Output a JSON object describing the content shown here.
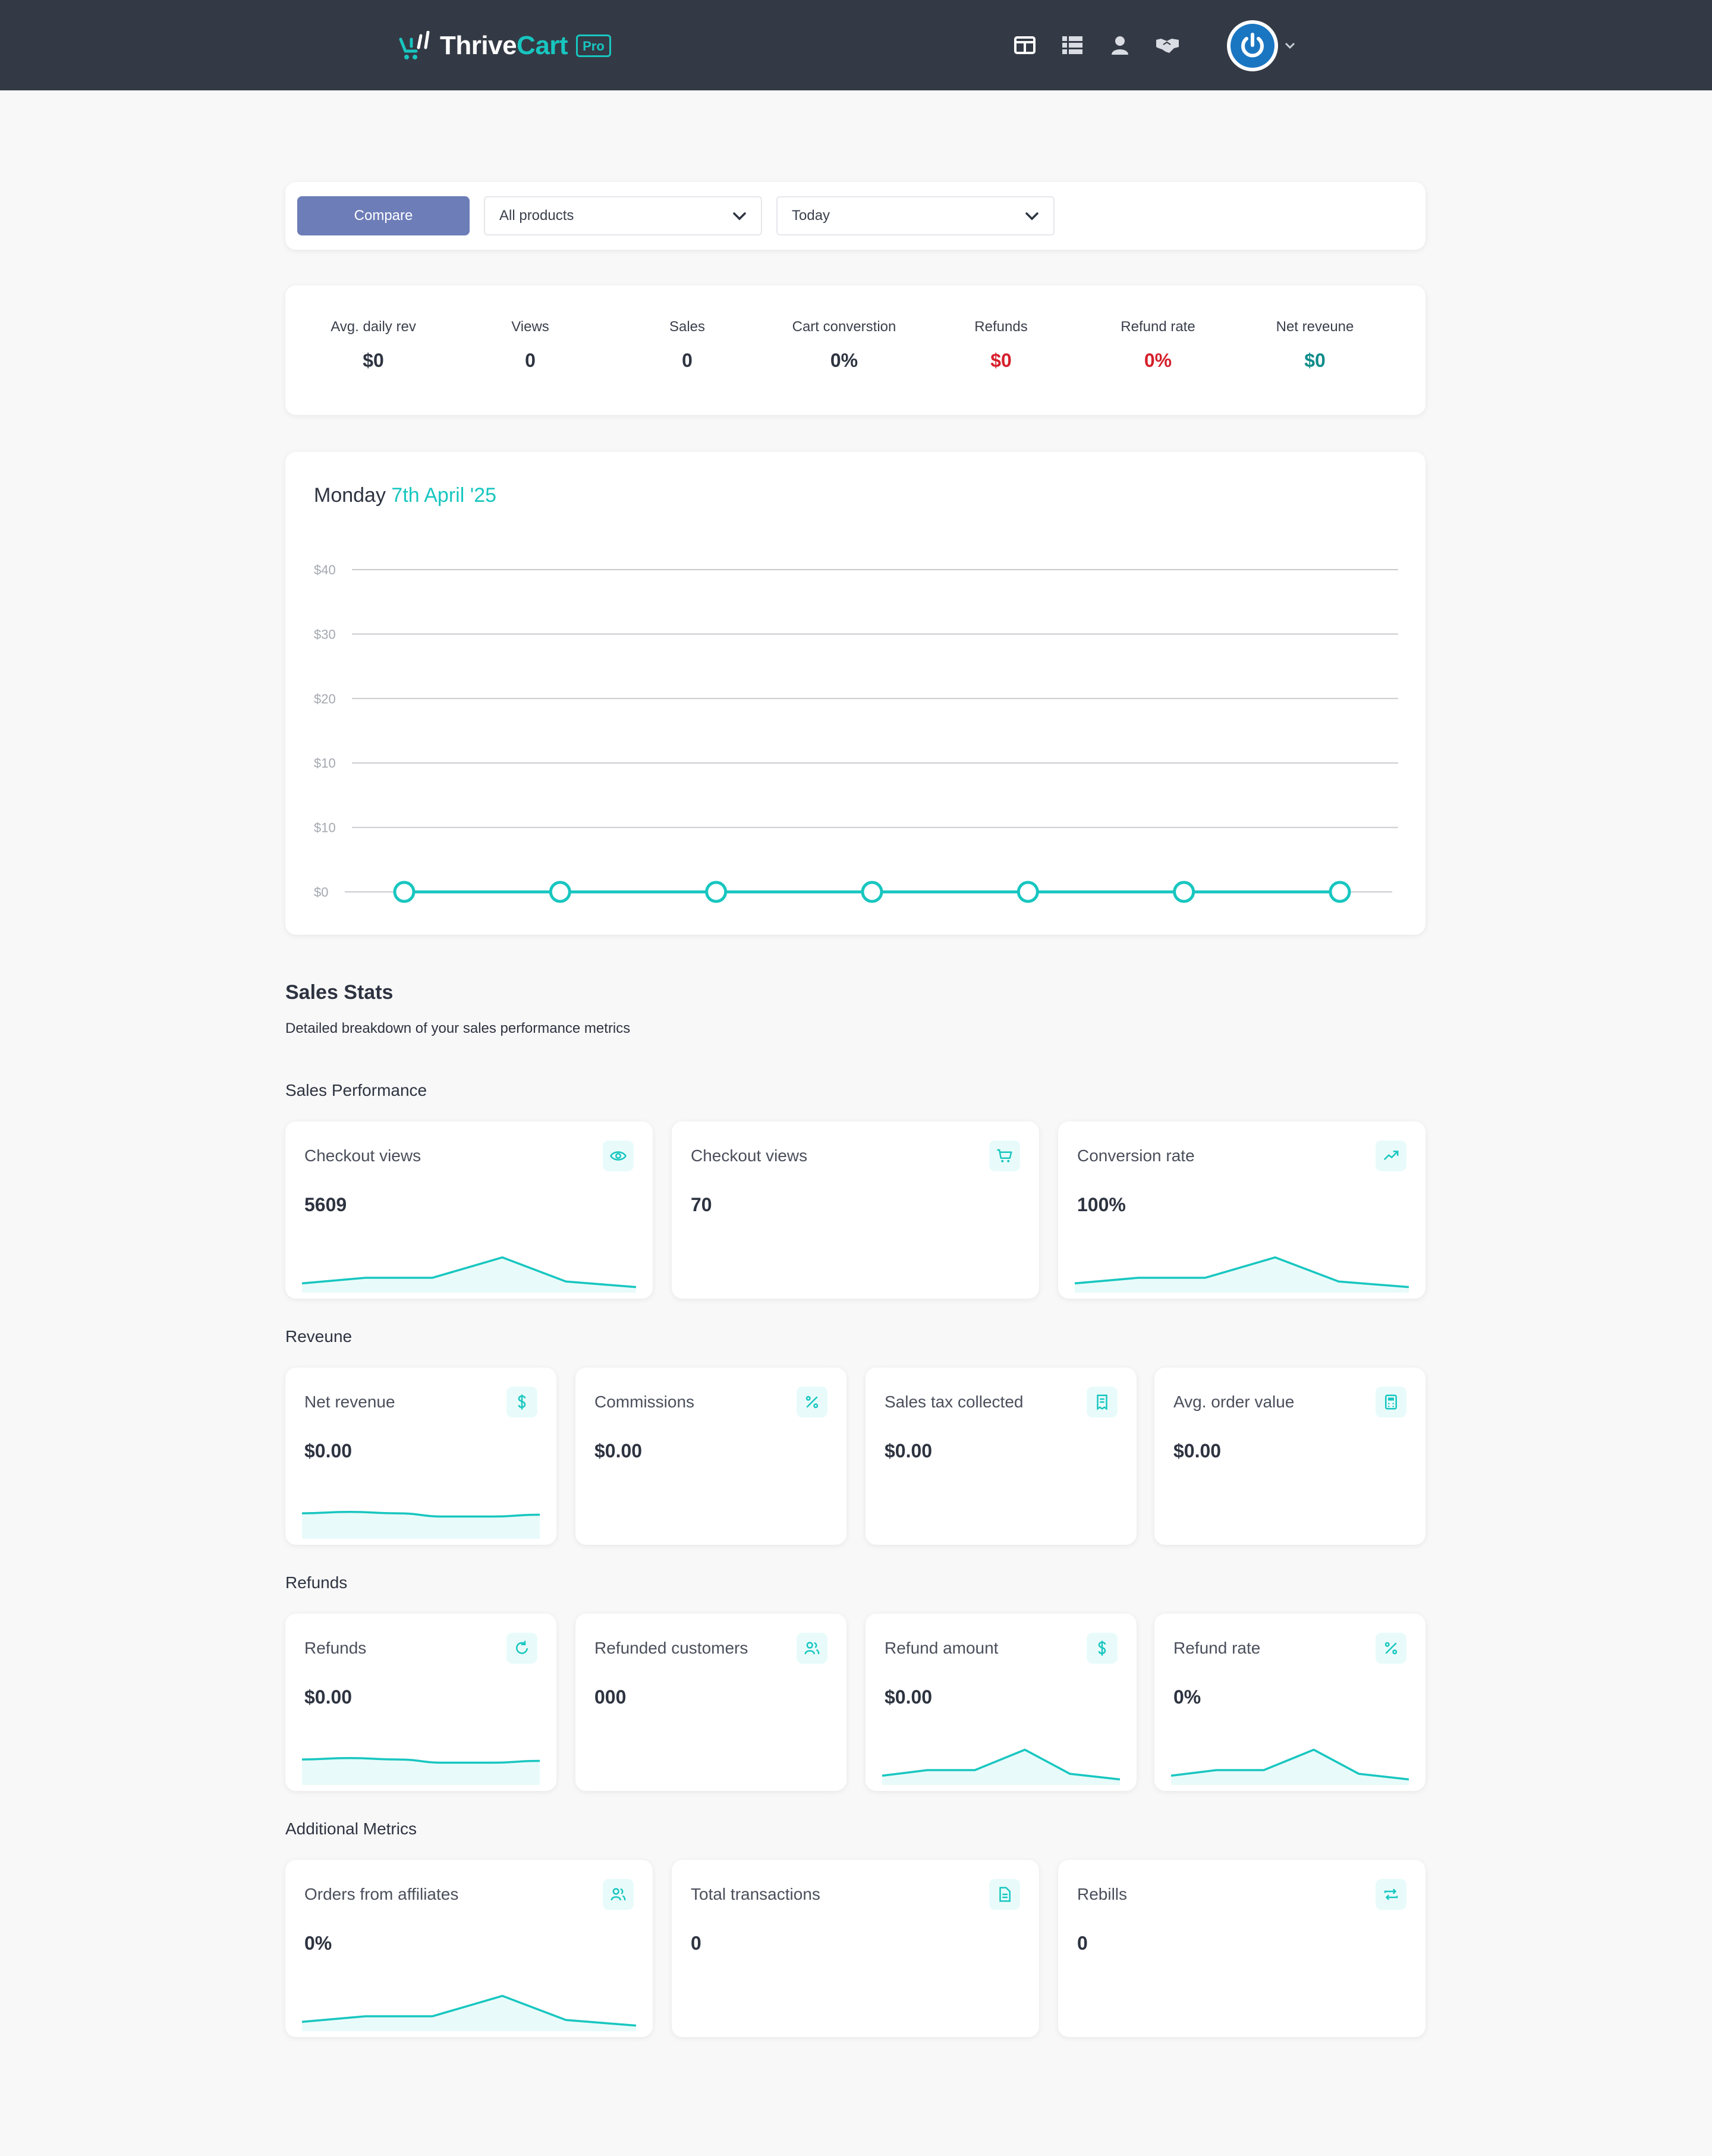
{
  "app": {
    "brand_part1": "Thrive",
    "brand_part2": "Cart",
    "brand_badge": "Pro",
    "accent_color": "#18c6c0",
    "nav_icons": [
      "layout-icon",
      "list-icon",
      "user-icon",
      "handshake-icon"
    ],
    "avatar_icon": "power-icon"
  },
  "filters": {
    "compare_label": "Compare",
    "product_value": "All products",
    "period_value": "Today"
  },
  "summary": [
    {
      "label": "Avg. daily rev",
      "value": "$0",
      "color": "#2d3340"
    },
    {
      "label": "Views",
      "value": "0",
      "color": "#2d3340"
    },
    {
      "label": "Sales",
      "value": "0",
      "color": "#2d3340"
    },
    {
      "label": "Cart converstion",
      "value": "0%",
      "color": "#2d3340"
    },
    {
      "label": "Refunds",
      "value": "$0",
      "color": "#d61f2c"
    },
    {
      "label": "Refund rate",
      "value": "0%",
      "color": "#d61f2c"
    },
    {
      "label": "Net reveune",
      "value": "$0",
      "color": "#0e8c8a"
    }
  ],
  "chart_header": {
    "day": "Monday",
    "date": "7th April '25"
  },
  "chart_data": {
    "type": "line",
    "y_tick_labels": [
      "$40",
      "$30",
      "$20",
      "$10",
      "$10",
      "$0"
    ],
    "ylim": [
      0,
      40
    ],
    "x": [
      1,
      2,
      3,
      4,
      5,
      6,
      7
    ],
    "series": [
      {
        "values": [
          0,
          0,
          0,
          0,
          0,
          0,
          0
        ]
      }
    ],
    "grid": true,
    "title": "",
    "xlabel": "",
    "ylabel": ""
  },
  "sales_stats": {
    "title": "Sales Stats",
    "subtitle": "Detailed breakdown of your sales performance metrics",
    "groups": {
      "performance": {
        "title": "Sales Performance",
        "cards": [
          {
            "label": "Checkout views",
            "value": "5609",
            "icon": "eye-icon"
          },
          {
            "label": "Checkout views",
            "value": "70",
            "icon": "cart-icon"
          },
          {
            "label": "Conversion rate",
            "value": "100%",
            "icon": "trend-up-icon"
          }
        ]
      },
      "revenue": {
        "title": "Reveune",
        "cards": [
          {
            "label": "Net revenue",
            "value": "$0.00",
            "icon": "dollar-icon"
          },
          {
            "label": "Commissions",
            "value": "$0.00",
            "icon": "percent-icon"
          },
          {
            "label": "Sales tax collected",
            "value": "$0.00",
            "icon": "receipt-icon"
          },
          {
            "label": "Avg. order value",
            "value": "$0.00",
            "icon": "calculator-icon"
          }
        ]
      },
      "refunds": {
        "title": "Refunds",
        "cards": [
          {
            "label": "Refunds",
            "value": "$0.00",
            "icon": "refresh-icon"
          },
          {
            "label": "Refunded customers",
            "value": "000",
            "icon": "users-icon"
          },
          {
            "label": "Refund amount",
            "value": "$0.00",
            "icon": "dollar-icon"
          },
          {
            "label": "Refund rate",
            "value": "0%",
            "icon": "percent-icon"
          }
        ]
      },
      "additional": {
        "title": "Additional Metrics",
        "cards": [
          {
            "label": "Orders from affiliates",
            "value": "0%",
            "icon": "users-icon"
          },
          {
            "label": "Total transactions",
            "value": "0",
            "icon": "document-icon"
          },
          {
            "label": "Rebills",
            "value": "0",
            "icon": "repeat-icon"
          }
        ]
      }
    }
  }
}
